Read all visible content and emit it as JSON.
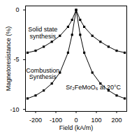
{
  "chart_data": {
    "type": "line",
    "x_label": "Field (kA/m)",
    "y_label": "Magnetoresistance (%)",
    "x": [
      -240,
      -200,
      -160,
      -120,
      -80,
      -40,
      -20,
      0,
      20,
      40,
      80,
      120,
      160,
      200,
      240
    ],
    "series": [
      {
        "name": "Solid state synthesis",
        "color": "#000000",
        "marker": "square",
        "line_style": "solid",
        "values": [
          -4.3,
          -4.1,
          -3.7,
          -3.2,
          -2.6,
          -1.7,
          -1.0,
          0,
          -1.0,
          -1.7,
          -2.6,
          -3.2,
          -3.7,
          -4.1,
          -4.3
        ]
      },
      {
        "name": "Combustion Synthesis",
        "color": "#000000",
        "marker": "square",
        "line_style": "solid",
        "values": [
          -8.9,
          -8.6,
          -8.1,
          -7.4,
          -6.3,
          -4.3,
          -2.5,
          0,
          -2.5,
          -4.3,
          -6.3,
          -7.4,
          -8.1,
          -8.6,
          -8.9
        ]
      }
    ],
    "annotations": [
      {
        "text": "Solid state\nsynthesis",
        "x": -165,
        "y": -2.3
      },
      {
        "text": "Combustion\nSynthesis",
        "x": -165,
        "y": -6.4
      },
      {
        "text": "Sr₂FeMoO₆ at 20°C",
        "x": 85,
        "y": -7.8
      }
    ],
    "xlim": [
      -250,
      250
    ],
    "xticks": [
      -200,
      -100,
      0,
      100,
      200
    ],
    "ylim": [
      -10.2,
      0.4
    ],
    "yticks": [
      -10,
      -5,
      0
    ],
    "grid": false,
    "legend": false
  }
}
